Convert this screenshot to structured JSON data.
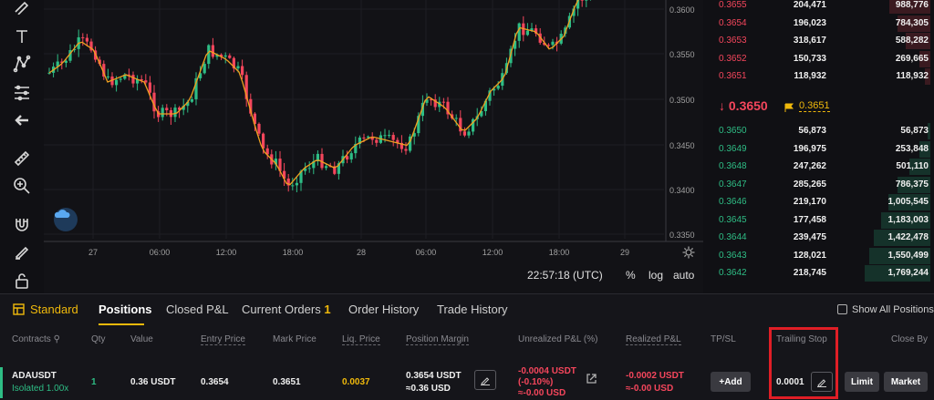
{
  "chart": {
    "price_ticks": [
      "0.3600",
      "0.3550",
      "0.3500",
      "0.3450",
      "0.3400",
      "0.3350"
    ],
    "time_ticks": [
      "27",
      "06:00",
      "12:00",
      "18:00",
      "28",
      "06:00",
      "12:00",
      "18:00",
      "29"
    ],
    "clock": "22:57:18 (UTC)",
    "options": [
      "%",
      "log",
      "auto"
    ]
  },
  "orderbook": {
    "asks": [
      {
        "price": "0.3655",
        "qty": "204,471",
        "total": "988,776",
        "depth": 0.62
      },
      {
        "price": "0.3654",
        "qty": "196,023",
        "total": "784,305",
        "depth": 0.5
      },
      {
        "price": "0.3653",
        "qty": "318,617",
        "total": "588,282",
        "depth": 0.38
      },
      {
        "price": "0.3652",
        "qty": "150,733",
        "total": "269,665",
        "depth": 0.17
      },
      {
        "price": "0.3651",
        "qty": "118,932",
        "total": "118,932",
        "depth": 0.08
      }
    ],
    "mid_price": "↓ 0.3650",
    "mark_price": "0.3651",
    "bids": [
      {
        "price": "0.3650",
        "qty": "56,873",
        "total": "56,873",
        "depth": 0.04
      },
      {
        "price": "0.3649",
        "qty": "196,975",
        "total": "253,848",
        "depth": 0.16
      },
      {
        "price": "0.3648",
        "qty": "247,262",
        "total": "501,110",
        "depth": 0.32
      },
      {
        "price": "0.3647",
        "qty": "285,265",
        "total": "786,375",
        "depth": 0.5
      },
      {
        "price": "0.3646",
        "qty": "219,170",
        "total": "1,005,545",
        "depth": 0.64
      },
      {
        "price": "0.3645",
        "qty": "177,458",
        "total": "1,183,003",
        "depth": 0.75
      },
      {
        "price": "0.3644",
        "qty": "239,475",
        "total": "1,422,478",
        "depth": 0.86
      },
      {
        "price": "0.3643",
        "qty": "128,021",
        "total": "1,550,499",
        "depth": 0.93
      },
      {
        "price": "0.3642",
        "qty": "218,745",
        "total": "1,769,244",
        "depth": 1.0
      }
    ]
  },
  "tabs": {
    "standard": "Standard",
    "positions": "Positions",
    "closed_pnl": "Closed P&L",
    "current_orders": "Current Orders",
    "current_orders_count": "1",
    "order_history": "Order History",
    "trade_history": "Trade History",
    "show_all": "Show All Positions"
  },
  "columns": {
    "contracts": "Contracts",
    "qty": "Qty",
    "value": "Value",
    "entry_price": "Entry Price",
    "mark_price": "Mark Price",
    "liq_price": "Liq. Price",
    "position_margin": "Position Margin",
    "unrealized_pnl": "Unrealized P&L (%)",
    "realized_pnl": "Realized P&L",
    "tpsl": "TP/SL",
    "trailing_stop": "Trailing Stop",
    "close_by": "Close By"
  },
  "position": {
    "symbol": "ADAUSDT",
    "mode": "Isolated 1.00x",
    "qty": "1",
    "value": "0.36 USDT",
    "entry_price": "0.3654",
    "mark_price": "0.3651",
    "liq_price": "0.0037",
    "margin_line1": "0.3654 USDT",
    "margin_line2": "≈0.36 USD",
    "upnl_line1": "-0.0004 USDT",
    "upnl_line2": "(-0.10%)",
    "upnl_line3": "≈-0.00 USD",
    "rpnl_line1": "-0.0002 USDT",
    "rpnl_line2": "≈-0.00 USD",
    "add_label": "+Add",
    "trailing_stop": "0.0001",
    "limit_label": "Limit",
    "market_label": "Market"
  },
  "colors": {
    "up": "#2ebd85",
    "down": "#f5465c",
    "accent": "#f0b90b"
  }
}
